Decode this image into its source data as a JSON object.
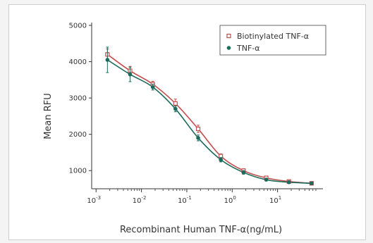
{
  "chart_data": {
    "type": "scatter",
    "xlabel": "Recombinant Human TNF-α(ng/mL)",
    "ylabel": "Mean RFU",
    "xscale": "log",
    "xlim": [
      0.0008,
      70
    ],
    "ylim": [
      500,
      5000
    ],
    "grid": false,
    "legend_position": "top-right",
    "x_ticks": [
      {
        "base": "10",
        "exp": "-3",
        "value": 0.001
      },
      {
        "base": "10",
        "exp": "-2",
        "value": 0.01
      },
      {
        "base": "10",
        "exp": "-1",
        "value": 0.1
      },
      {
        "base": "10",
        "exp": "0",
        "value": 1
      },
      {
        "base": "10",
        "exp": "1",
        "value": 10
      }
    ],
    "y_ticks": [
      1000,
      2000,
      3000,
      4000,
      5000
    ],
    "series": [
      {
        "name": "Biotinylated TNF-α",
        "marker": "open-square",
        "color": "#c0504d",
        "x": [
          0.00178,
          0.00562,
          0.0178,
          0.0562,
          0.178,
          0.562,
          1.78,
          5.62,
          17.8,
          56.2
        ],
        "y": [
          4200,
          3750,
          3380,
          2850,
          2150,
          1400,
          1000,
          800,
          700,
          650
        ],
        "err": [
          150,
          120,
          80,
          120,
          100,
          60,
          50,
          40,
          30,
          30
        ]
      },
      {
        "name": "TNF-α",
        "marker": "filled-circle",
        "color": "#1a6b5a",
        "x": [
          0.00178,
          0.00562,
          0.0178,
          0.0562,
          0.178,
          0.562,
          1.78,
          5.62,
          17.8,
          56.2
        ],
        "y": [
          4050,
          3650,
          3300,
          2700,
          1900,
          1300,
          950,
          750,
          680,
          650
        ],
        "err": [
          350,
          200,
          80,
          80,
          80,
          60,
          50,
          30,
          30,
          30
        ]
      }
    ]
  }
}
